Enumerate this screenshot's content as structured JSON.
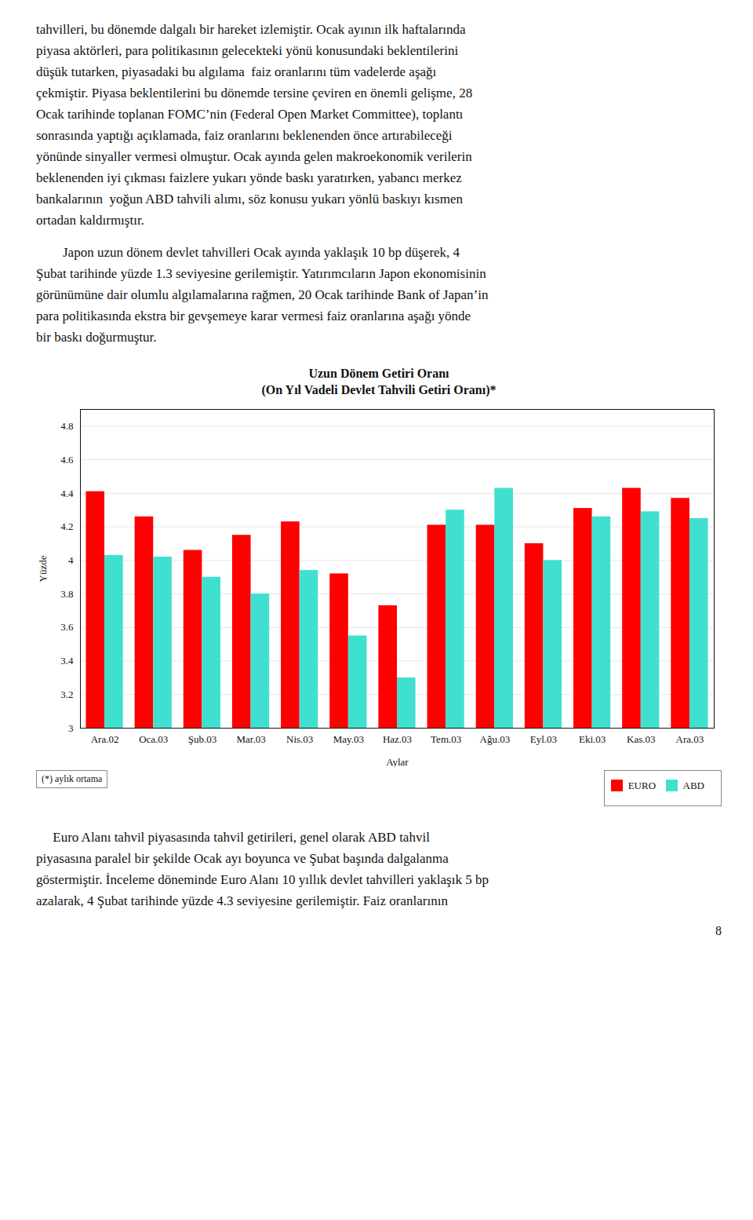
{
  "chart_data": {
    "type": "bar",
    "title": "Uzun Dönem Getiri Oranı",
    "subtitle": "(On Yıl Vadeli Devlet Tahvili Getiri Oranı)*",
    "xlabel": "Aylar",
    "ylabel": "Yüzde",
    "footnote": "(*) aylık ortama",
    "categories": [
      "Ara.02",
      "Oca.03",
      "Şub.03",
      "Mar.03",
      "Nis.03",
      "May.03",
      "Haz.03",
      "Tem.03",
      "Ağu.03",
      "Eyl.03",
      "Eki.03",
      "Kas.03",
      "Ara.03"
    ],
    "series": [
      {
        "name": "EURO",
        "color": "#FF0000",
        "values": [
          4.41,
          4.26,
          4.06,
          4.15,
          4.23,
          3.92,
          3.73,
          4.21,
          4.21,
          4.1,
          4.31,
          4.43,
          4.37
        ]
      },
      {
        "name": "ABD",
        "color": "#40E0D0",
        "values": [
          4.03,
          4.02,
          3.9,
          3.8,
          3.94,
          3.55,
          3.3,
          4.3,
          4.43,
          4.0,
          4.26,
          4.29,
          4.25
        ]
      }
    ],
    "ylim": [
      3.0,
      4.9
    ],
    "yticks": [
      3,
      3.2,
      3.4,
      3.6,
      3.8,
      4,
      4.2,
      4.4,
      4.6,
      4.8
    ],
    "grid": true,
    "legend": "lower right",
    "paragraphs_above": [
      [
        "tahvilleri, bu dönemde dalgalı bir hareket izlemiştir. Ocak ayının ilk haftalarında",
        "piyasa aktörleri, para politikasının gelecekteki yönü konusundaki beklentilerini",
        "düşük tutarken, piyasadaki bu algılama  faiz oranlarını tüm vadelerde aşağı",
        "çekmiştir. Piyasa beklentilerini bu dönemde tersine çeviren en önemli gelişme, 28",
        "Ocak tarihinde toplanan FOMC’nin (Federal Open Market Committee), toplantı",
        "sonrasında yaptığı açıklamada, faiz oranlarını beklenenden önce artırabileceği",
        "yönünde sinyaller vermesi olmuştur. Ocak ayında gelen makroekonomik verilerin",
        "beklenenden iyi çıkması faizlere yukarı yönde baskı yaratırken, yabancı merkez",
        "bankalarının  yoğun ABD tahvili alımı, söz konusu yukarı yönlü baskıyı kısmen",
        "ortadan kaldırmıştır."
      ],
      [
        "        Japon uzun dönem devlet tahvilleri Ocak ayında yaklaşık 10 bp düşerek, 4",
        "Şubat tarihinde yüzde 1.3 seviyesine gerilemiştir. Yatırımcıların Japon ekonomisinin",
        "görünümüne dair olumlu algılamalarına rağmen, 20 Ocak tarihinde Bank of Japan’in",
        "para politikasında ekstra bir gevşemeye karar vermesi faiz oranlarına aşağı yönde",
        "bir baskı doğurmuştur."
      ]
    ],
    "paragraphs_below": [
      [
        "     Euro Alanı tahvil piyasasında tahvil getirileri, genel olarak ABD tahvil",
        "piyasasına paralel bir şekilde Ocak ayı boyunca ve Şubat başında dalgalanma",
        "göstermiştir. İnceleme döneminde Euro Alanı 10 yıllık devlet tahvilleri yaklaşık 5 bp",
        "azalarak, 4 Şubat tarihinde yüzde 4.3 seviyesine gerilemiştir. Faiz oranlarının"
      ]
    ],
    "page_number": "8"
  }
}
